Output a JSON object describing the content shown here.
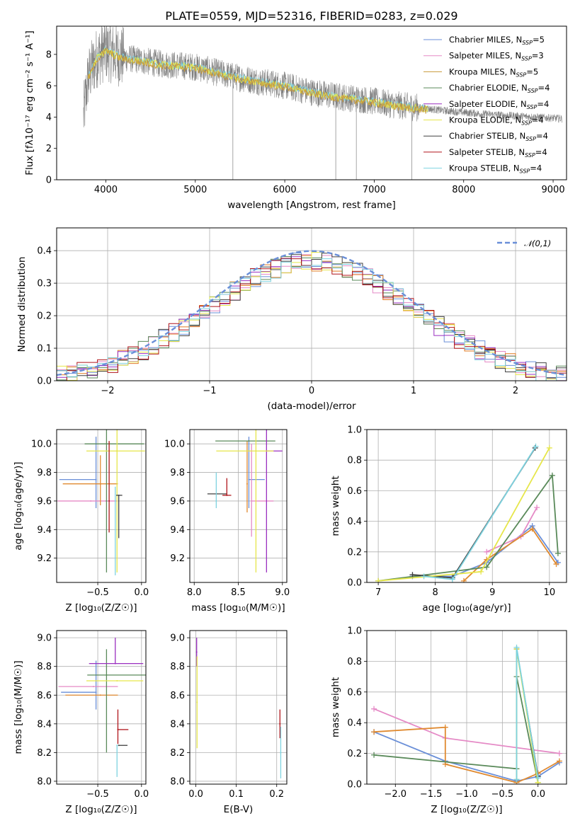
{
  "title": "PLATE=0559, MJD=52316, FIBERID=0283, z=0.029",
  "colors": [
    "#6a8fd8",
    "#e58ac6",
    "#c89a3a",
    "#5a8a5a",
    "#9a2fc0",
    "#e6e64a",
    "#404040",
    "#b0151b",
    "#7ed3e0"
  ],
  "chart_data": [
    {
      "id": "spectrum",
      "type": "line",
      "title": "PLATE=0559, MJD=52316, FIBERID=0283, z=0.029",
      "xlabel": "wavelength [Angstrom, rest frame]",
      "ylabel": "Flux [fλ10⁻¹⁷ erg cm⁻² s⁻¹ A⁻¹]",
      "xlim": [
        3450,
        9150
      ],
      "ylim": [
        0,
        9.8
      ],
      "xticks": [
        4000,
        5000,
        6000,
        7000,
        8000,
        9000
      ],
      "yticks": [
        0,
        2,
        4,
        6,
        8
      ],
      "data_envelope": {
        "wavelength": [
          3750,
          3800,
          3900,
          4000,
          4100,
          4200,
          4400,
          4600,
          4800,
          5000,
          5200,
          5500,
          5800,
          6000,
          6300,
          6600,
          6900,
          7200,
          7500,
          7800,
          8000,
          8200,
          8500,
          8800,
          9100
        ],
        "flux": [
          4.0,
          6.5,
          7.8,
          8.3,
          8.0,
          7.8,
          7.6,
          7.4,
          7.3,
          7.2,
          6.9,
          6.5,
          6.2,
          6.0,
          5.6,
          5.3,
          5.1,
          4.8,
          4.6,
          4.4,
          4.3,
          4.2,
          4.1,
          4.0,
          3.9
        ],
        "color": "#808080"
      },
      "series": [
        {
          "name": "Chabrier MILES, N_SSP=5"
        },
        {
          "name": "Salpeter MILES, N_SSP=3"
        },
        {
          "name": "Kroupa MILES, N_SSP=5"
        },
        {
          "name": "Chabrier ELODIE, N_SSP=4"
        },
        {
          "name": "Salpeter ELODIE, N_SSP=4"
        },
        {
          "name": "Kroupa ELODIE, N_SSP=4"
        },
        {
          "name": "Chabrier STELIB, N_SSP=4"
        },
        {
          "name": "Salpeter STELIB, N_SSP=4"
        },
        {
          "name": "Kroupa STELIB, N_SSP=4"
        }
      ],
      "legend": "upper right"
    },
    {
      "id": "residuals",
      "type": "histogram",
      "xlabel": "(data-model)/error",
      "ylabel": "Normed distribution",
      "xlim": [
        -2.5,
        2.5
      ],
      "ylim": [
        0,
        0.47
      ],
      "xticks": [
        -2,
        -1,
        0,
        1,
        2
      ],
      "yticks": [
        0.0,
        0.1,
        0.2,
        0.3,
        0.4
      ],
      "bin_centers": [
        -2.45,
        -2.35,
        -2.25,
        -2.15,
        -2.05,
        -1.95,
        -1.85,
        -1.75,
        -1.65,
        -1.55,
        -1.45,
        -1.35,
        -1.25,
        -1.15,
        -1.05,
        -0.95,
        -0.85,
        -0.75,
        -0.65,
        -0.55,
        -0.45,
        -0.35,
        -0.25,
        -0.15,
        -0.05,
        0.05,
        0.15,
        0.25,
        0.35,
        0.45,
        0.55,
        0.65,
        0.75,
        0.85,
        0.95,
        1.05,
        1.15,
        1.25,
        1.35,
        1.45,
        1.55,
        1.65,
        1.75,
        1.85,
        1.95,
        2.05,
        2.15,
        2.25,
        2.35,
        2.45
      ],
      "reference_curve": {
        "name": "𝒩(0,1)",
        "mean": 0,
        "sigma": 1,
        "color": "#6a8fd8"
      },
      "legend": "upper right",
      "note": "nine step histograms, one per model, same colors as spectrum legend"
    },
    {
      "id": "age_vs_Z",
      "type": "scatter",
      "xlabel": "Z [log₁₀(Z/Z☉)]",
      "ylabel": "age  [log₁₀(age/yr)]",
      "xlim": [
        -0.97,
        0.05
      ],
      "ylim": [
        9.03,
        10.1
      ],
      "xticks": [
        -0.5,
        0.0
      ],
      "xticklabels": [
        "−0.5",
        "0.0"
      ],
      "yticks": [
        9.2,
        9.4,
        9.6,
        9.8,
        10.0
      ],
      "points": [
        {
          "x": -0.52,
          "y": 9.75,
          "xerr": [
            0.42,
            0.0
          ],
          "yerr": [
            0.2,
            0.3
          ],
          "color": "#6a8fd8"
        },
        {
          "x": -0.58,
          "y": 9.6,
          "xerr": [
            0.38,
            0.3
          ],
          "yerr": [
            0.0,
            0.0
          ],
          "color": "#e58ac6"
        },
        {
          "x": -0.47,
          "y": 9.72,
          "xerr": [
            0.43,
            0.2
          ],
          "yerr": [
            0.15,
            0.2
          ],
          "color": "#e08a30"
        },
        {
          "x": -0.4,
          "y": 9.6,
          "xerr": [
            0.0,
            0.0
          ],
          "yerr": [
            0.5,
            0.5
          ],
          "color": "#5a8a5a"
        },
        {
          "x": -0.4,
          "y": 10.0,
          "xerr": [
            0.25,
            0.43
          ],
          "yerr": [
            0.0,
            0.0
          ],
          "color": "#5a8a5a"
        },
        {
          "x": -0.28,
          "y": 9.95,
          "xerr": [
            0.35,
            0.32
          ],
          "yerr": [
            0.85,
            0.15
          ],
          "color": "#e6e64a"
        },
        {
          "x": -0.26,
          "y": 9.64,
          "xerr": [
            0.03,
            0.04
          ],
          "yerr": [
            0.3,
            0.0
          ],
          "color": "#404040"
        },
        {
          "x": -0.37,
          "y": 9.6,
          "xerr": [
            0.0,
            0.0
          ],
          "yerr": [
            0.22,
            0.42
          ],
          "color": "#b0151b"
        },
        {
          "x": -0.3,
          "y": 9.6,
          "xerr": [
            0.0,
            0.0
          ],
          "yerr": [
            0.52,
            0.1
          ],
          "color": "#7ed3e0"
        }
      ]
    },
    {
      "id": "age_vs_mass",
      "type": "scatter",
      "xlabel": "mass [log₁₀(M/M☉)]",
      "xlim": [
        7.95,
        9.05
      ],
      "ylim": [
        9.03,
        10.1
      ],
      "xticks": [
        8.0,
        8.5,
        9.0
      ],
      "yticks": [
        9.2,
        9.4,
        9.6,
        9.8,
        10.0
      ],
      "points": [
        {
          "x": 8.62,
          "y": 9.75,
          "xerr": [
            0.0,
            0.18
          ],
          "yerr": [
            0.2,
            0.3
          ],
          "color": "#6a8fd8"
        },
        {
          "x": 8.65,
          "y": 9.6,
          "xerr": [
            0.0,
            0.25
          ],
          "yerr": [
            0.25,
            0.4
          ],
          "color": "#e58ac6"
        },
        {
          "x": 8.6,
          "y": 9.72,
          "xerr": [
            0.0,
            0.0
          ],
          "yerr": [
            0.2,
            0.3
          ],
          "color": "#e08a30"
        },
        {
          "x": 8.62,
          "y": 10.02,
          "xerr": [
            0.38,
            0.3
          ],
          "yerr": [
            0.0,
            0.0
          ],
          "color": "#5a8a5a"
        },
        {
          "x": 8.82,
          "y": 9.95,
          "xerr": [
            0.0,
            0.18
          ],
          "yerr": [
            0.85,
            0.15
          ],
          "color": "#9a2fc0"
        },
        {
          "x": 8.7,
          "y": 9.95,
          "xerr": [
            0.45,
            0.2
          ],
          "yerr": [
            0.85,
            0.15
          ],
          "color": "#e6e64a"
        },
        {
          "x": 8.25,
          "y": 9.65,
          "xerr": [
            0.1,
            0.12
          ],
          "yerr": [
            0.0,
            0.0
          ],
          "color": "#404040"
        },
        {
          "x": 8.37,
          "y": 9.64,
          "xerr": [
            0.05,
            0.05
          ],
          "yerr": [
            0.0,
            0.12
          ],
          "color": "#b0151b"
        },
        {
          "x": 8.25,
          "y": 9.6,
          "xerr": [
            0.0,
            0.0
          ],
          "yerr": [
            0.05,
            0.2
          ],
          "color": "#7ed3e0"
        }
      ]
    },
    {
      "id": "mass_weight_vs_age",
      "type": "line",
      "xlabel": "age  [log₁₀(age/yr)]",
      "ylabel": "mass weight",
      "xlim": [
        6.8,
        10.3
      ],
      "ylim": [
        0,
        1.0
      ],
      "xticks": [
        7,
        8,
        9,
        10
      ],
      "yticks": [
        0.0,
        0.2,
        0.4,
        0.6,
        0.8,
        1.0
      ],
      "series": [
        {
          "color": "#6a8fd8",
          "x": [
            7.6,
            8.3,
            8.9,
            9.7,
            10.15
          ],
          "y": [
            0.04,
            0.04,
            0.13,
            0.37,
            0.13
          ]
        },
        {
          "color": "#e58ac6",
          "x": [
            8.9,
            9.5,
            9.78
          ],
          "y": [
            0.2,
            0.3,
            0.49
          ]
        },
        {
          "color": "#e08a30",
          "x": [
            8.5,
            8.9,
            9.7,
            10.12
          ],
          "y": [
            0.01,
            0.15,
            0.35,
            0.12
          ]
        },
        {
          "color": "#5a8a5a",
          "x": [
            7.0,
            8.9,
            10.05,
            10.15
          ],
          "y": [
            0.01,
            0.1,
            0.7,
            0.19
          ]
        },
        {
          "color": "#404040",
          "x": [
            7.6,
            8.3,
            9.75
          ],
          "y": [
            0.05,
            0.03,
            0.88
          ]
        },
        {
          "color": "#e6e64a",
          "x": [
            7.0,
            8.8,
            10.0
          ],
          "y": [
            0.01,
            0.07,
            0.88
          ]
        },
        {
          "color": "#7ed3e0",
          "x": [
            7.8,
            8.3,
            9.76
          ],
          "y": [
            0.04,
            0.02,
            0.89
          ]
        }
      ]
    },
    {
      "id": "mass_vs_Z",
      "type": "scatter",
      "xlabel": "Z [log₁₀(Z/Z☉)]",
      "ylabel": "mass [log₁₀(M/M☉)]",
      "xlim": [
        -0.97,
        0.05
      ],
      "ylim": [
        7.98,
        9.05
      ],
      "xticks": [
        -0.5,
        0.0
      ],
      "xticklabels": [
        "−0.5",
        "0.0"
      ],
      "yticks": [
        8.0,
        8.2,
        8.4,
        8.6,
        8.8,
        9.0
      ],
      "points": [
        {
          "x": -0.52,
          "y": 8.62,
          "xerr": [
            0.4,
            0.0
          ],
          "yerr": [
            0.12,
            0.22
          ],
          "color": "#6a8fd8"
        },
        {
          "x": -0.55,
          "y": 8.66,
          "xerr": [
            0.4,
            0.28
          ],
          "yerr": [
            0.0,
            0.0
          ],
          "color": "#e58ac6"
        },
        {
          "x": -0.47,
          "y": 8.6,
          "xerr": [
            0.4,
            0.2
          ],
          "yerr": [
            0.0,
            0.0
          ],
          "color": "#e08a30"
        },
        {
          "x": -0.4,
          "y": 8.74,
          "xerr": [
            0.22,
            0.45
          ],
          "yerr": [
            0.54,
            0.18
          ],
          "color": "#5a8a5a"
        },
        {
          "x": -0.3,
          "y": 8.82,
          "xerr": [
            0.3,
            0.32
          ],
          "yerr": [
            0.0,
            0.18
          ],
          "color": "#9a2fc0"
        },
        {
          "x": -0.28,
          "y": 8.7,
          "xerr": [
            0.35,
            0.3
          ],
          "yerr": [
            0.0,
            0.0
          ],
          "color": "#e6e64a"
        },
        {
          "x": -0.26,
          "y": 8.25,
          "xerr": [
            0.0,
            0.1
          ],
          "yerr": [
            0.0,
            0.0
          ],
          "color": "#404040"
        },
        {
          "x": -0.27,
          "y": 8.36,
          "xerr": [
            0.0,
            0.12
          ],
          "yerr": [
            0.1,
            0.14
          ],
          "color": "#b0151b"
        },
        {
          "x": -0.28,
          "y": 8.25,
          "xerr": [
            0.0,
            0.0
          ],
          "yerr": [
            0.22,
            0.0
          ],
          "color": "#7ed3e0"
        }
      ]
    },
    {
      "id": "mass_vs_ebv",
      "type": "scatter",
      "xlabel": "E(B-V)",
      "xlim": [
        -0.015,
        0.225
      ],
      "ylim": [
        7.98,
        9.05
      ],
      "xticks": [
        0.0,
        0.1,
        0.2
      ],
      "yticks": [
        8.0,
        8.2,
        8.4,
        8.6,
        8.8,
        9.0
      ],
      "points": [
        {
          "x": 0.002,
          "y": 8.9,
          "yerr": [
            0.1,
            0.1
          ],
          "color": "#9a2fc0"
        },
        {
          "x": 0.003,
          "y": 8.55,
          "yerr": [
            0.32,
            0.32
          ],
          "color": "#e6e64a"
        },
        {
          "x": 0.208,
          "y": 8.4,
          "yerr": [
            0.1,
            0.1
          ],
          "color": "#b0151b"
        },
        {
          "x": 0.21,
          "y": 8.2,
          "yerr": [
            0.18,
            0.18
          ],
          "color": "#7ed3e0"
        }
      ]
    },
    {
      "id": "mass_weight_vs_Z",
      "type": "line",
      "xlabel": "Z [log₁₀(Z/Z☉)]",
      "ylabel": "mass weight",
      "xlim": [
        -2.4,
        0.4
      ],
      "ylim": [
        0,
        1.0
      ],
      "xticks": [
        -2.0,
        -1.5,
        -1.0,
        -0.5,
        0.0
      ],
      "xticklabels": [
        "−2.0",
        "−1.5",
        "−1.0",
        "−0.5",
        "0.0"
      ],
      "yticks": [
        0.0,
        0.2,
        0.4,
        0.6,
        0.8,
        1.0
      ],
      "series": [
        {
          "color": "#6a8fd8",
          "x": [
            -2.3,
            -1.3,
            -0.3,
            0.0,
            0.3
          ],
          "y": [
            0.34,
            0.15,
            0.02,
            0.05,
            0.14
          ]
        },
        {
          "color": "#e58ac6",
          "x": [
            -2.3,
            -1.3,
            0.3
          ],
          "y": [
            0.49,
            0.3,
            0.2
          ]
        },
        {
          "color": "#e08a30",
          "x": [
            -2.3,
            -1.3,
            -1.3,
            -0.3,
            0.0,
            0.3
          ],
          "y": [
            0.34,
            0.37,
            0.13,
            0.01,
            0.07,
            0.15
          ]
        },
        {
          "color": "#5a8a5a",
          "x": [
            -2.3,
            -0.3,
            -0.3,
            0.0
          ],
          "y": [
            0.19,
            0.1,
            0.7,
            0.01
          ]
        },
        {
          "color": "#404040",
          "x": [
            -0.3,
            -0.3,
            0.0
          ],
          "y": [
            0.03,
            0.88,
            0.05
          ]
        },
        {
          "color": "#e6e64a",
          "x": [
            -0.3,
            -0.3,
            0.0
          ],
          "y": [
            0.03,
            0.88,
            0.01
          ]
        },
        {
          "color": "#7ed3e0",
          "x": [
            -0.3,
            -0.3,
            0.0
          ],
          "y": [
            0.03,
            0.89,
            0.04
          ]
        }
      ]
    }
  ]
}
